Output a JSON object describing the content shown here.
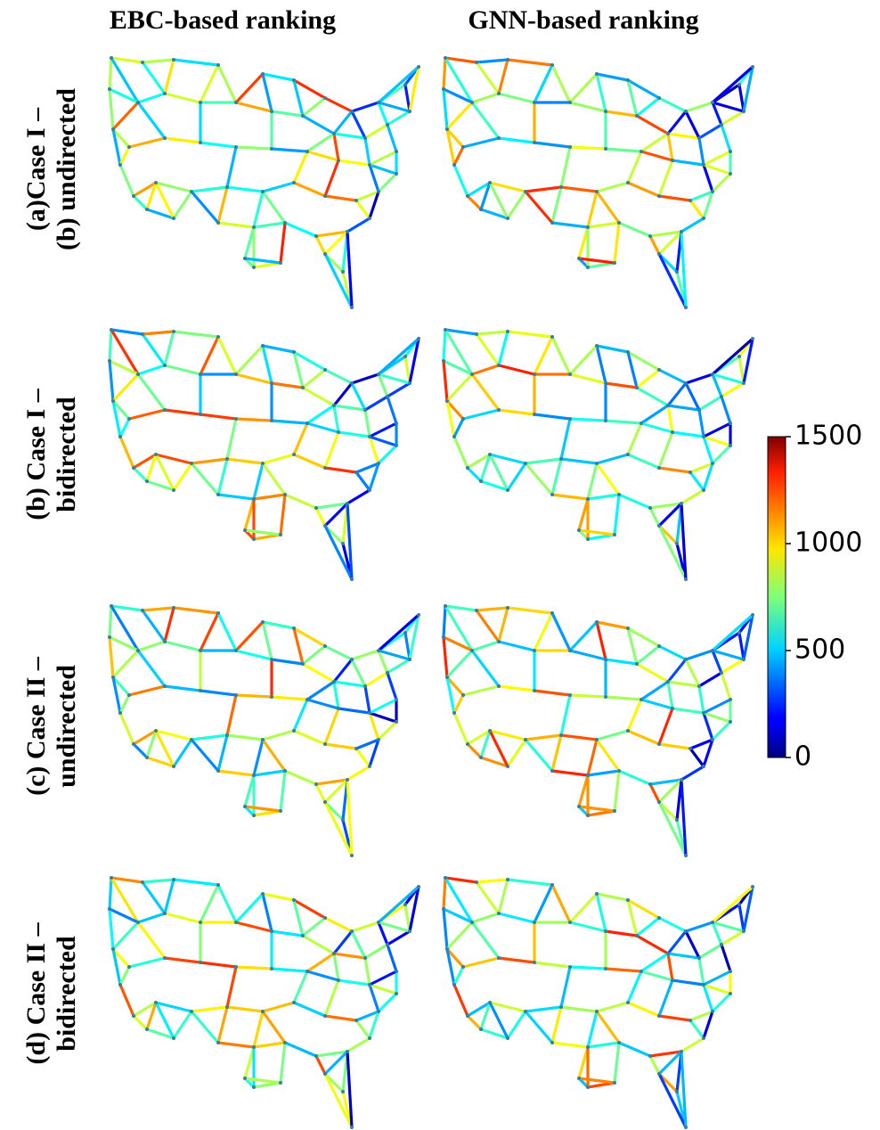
{
  "columns": [
    "EBC-based ranking",
    "GNN-based ranking"
  ],
  "rows": [
    {
      "lines": [
        "(a)Case I –",
        "(b) undirected"
      ]
    },
    {
      "lines": [
        "(b) Case I –",
        "bidirected"
      ]
    },
    {
      "lines": [
        "(c) Case II –",
        "undirected"
      ]
    },
    {
      "lines": [
        "(d) Case II –",
        "bidirected"
      ]
    }
  ],
  "colorbar": {
    "lim": [
      0,
      1500
    ],
    "ticks": [
      0,
      500,
      1000,
      1500
    ]
  }
}
